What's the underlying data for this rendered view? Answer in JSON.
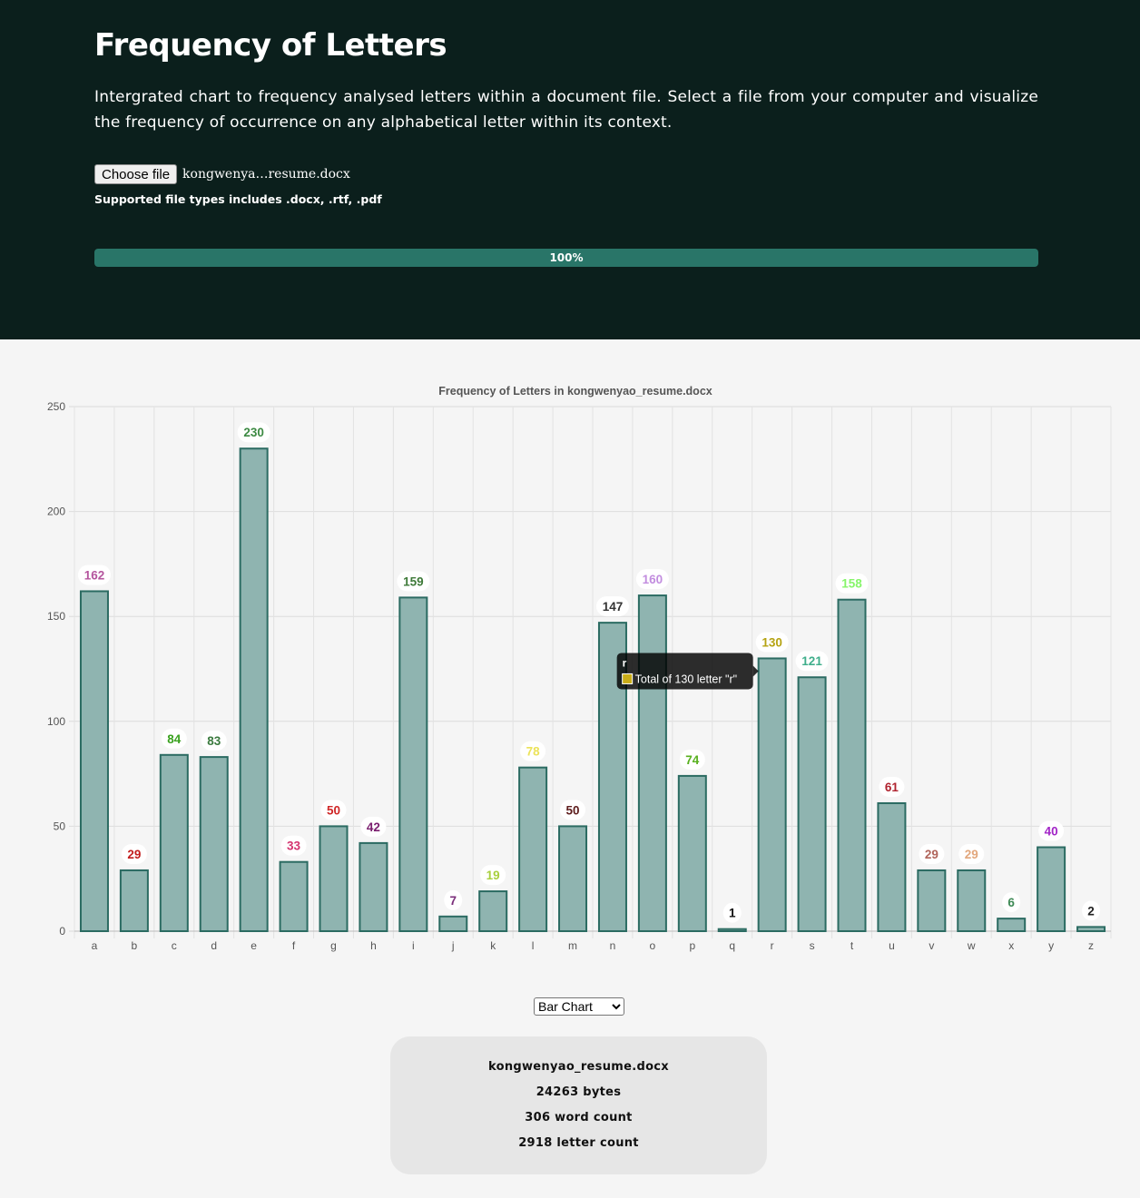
{
  "header": {
    "title": "Frequency of Letters",
    "description": "Intergrated chart to frequency analysed letters within a document file. Select a file from your computer and visualize the frequency of occurrence on any alphabetical letter within its context.",
    "choose_file_label": "Choose file",
    "file_name": "kongwenya…resume.docx",
    "supported_types": "Supported file types includes .docx, .rtf, .pdf",
    "progress_label": "100%",
    "progress_value": 100
  },
  "colors": {
    "header_bg": "#0b1f1c",
    "progress_fill": "#297568",
    "bar_fill": "#8fb4b0",
    "bar_stroke": "#2b6b62"
  },
  "chart_data": {
    "type": "bar",
    "title": "Frequency of Letters in kongwenyao_resume.docx",
    "xlabel": "",
    "ylabel": "",
    "ylim": [
      0,
      250
    ],
    "yticks": [
      0,
      50,
      100,
      150,
      200,
      250
    ],
    "grid": true,
    "categories": [
      "a",
      "b",
      "c",
      "d",
      "e",
      "f",
      "g",
      "h",
      "i",
      "j",
      "k",
      "l",
      "m",
      "n",
      "o",
      "p",
      "q",
      "r",
      "s",
      "t",
      "u",
      "v",
      "w",
      "x",
      "y",
      "z"
    ],
    "values": [
      162,
      29,
      84,
      83,
      230,
      33,
      50,
      42,
      159,
      7,
      19,
      78,
      50,
      147,
      160,
      74,
      1,
      130,
      121,
      158,
      61,
      29,
      29,
      6,
      40,
      2
    ],
    "label_colors": [
      "#b5559e",
      "#c21d1d",
      "#3aa11f",
      "#3a7a3e",
      "#3d8a43",
      "#d4336f",
      "#d02727",
      "#7a1d6e",
      "#3e7a39",
      "#7a2d7a",
      "#a8cf3e",
      "#ece35a",
      "#5e1d1d",
      "#333333",
      "#c28ddf",
      "#58b01e",
      "#111111",
      "#b5a312",
      "#3fae8b",
      "#86f56a",
      "#b0232f",
      "#b0645a",
      "#e2a77c",
      "#3e8a55",
      "#a224c7",
      "#222222"
    ],
    "tooltip": {
      "title": "r",
      "text": "Total of 130 letter \"r\"",
      "swatch_color": "#c9ad18"
    }
  },
  "select": {
    "selected": "Bar Chart"
  },
  "file_info": {
    "name": "kongwenyao_resume.docx",
    "size": "24263 bytes",
    "words": "306 word count",
    "letters": "2918 letter count"
  }
}
